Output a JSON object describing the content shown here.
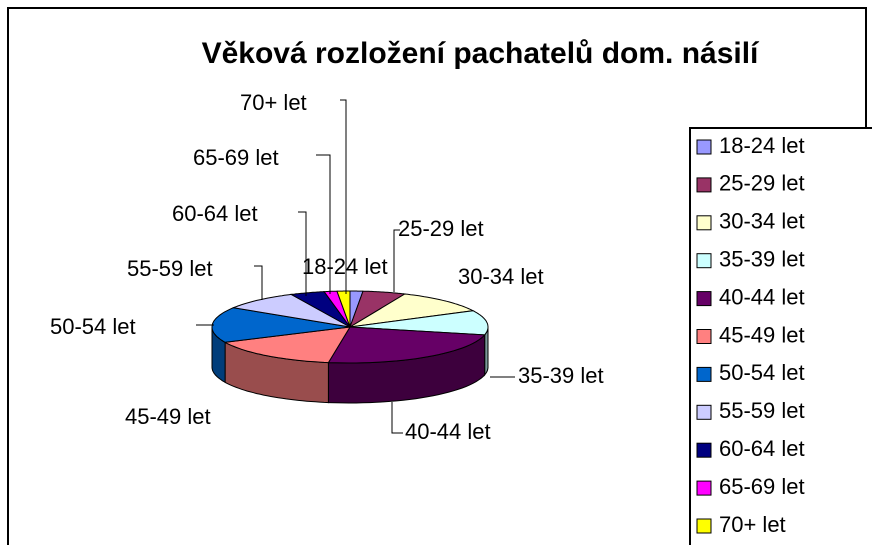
{
  "chart_data": {
    "type": "pie3d",
    "title": "Věková rozložení pachatelů dom. násilí",
    "categories": [
      "18-24 let",
      "25-29 let",
      "30-34 let",
      "35-39 let",
      "40-44 let",
      "45-49 let",
      "50-54 let",
      "55-59 let",
      "60-64 let",
      "65-69 let",
      "70+ let"
    ],
    "values": [
      1.5,
      5,
      11,
      11,
      24,
      15.5,
      16,
      9,
      4,
      1.5,
      1.5
    ],
    "colors": [
      "#9999ff",
      "#993366",
      "#ffffcc",
      "#ccffff",
      "#660066",
      "#ff8080",
      "#0066cc",
      "#ccccff",
      "#000080",
      "#ff00ff",
      "#ffff00"
    ],
    "legend": "right"
  }
}
